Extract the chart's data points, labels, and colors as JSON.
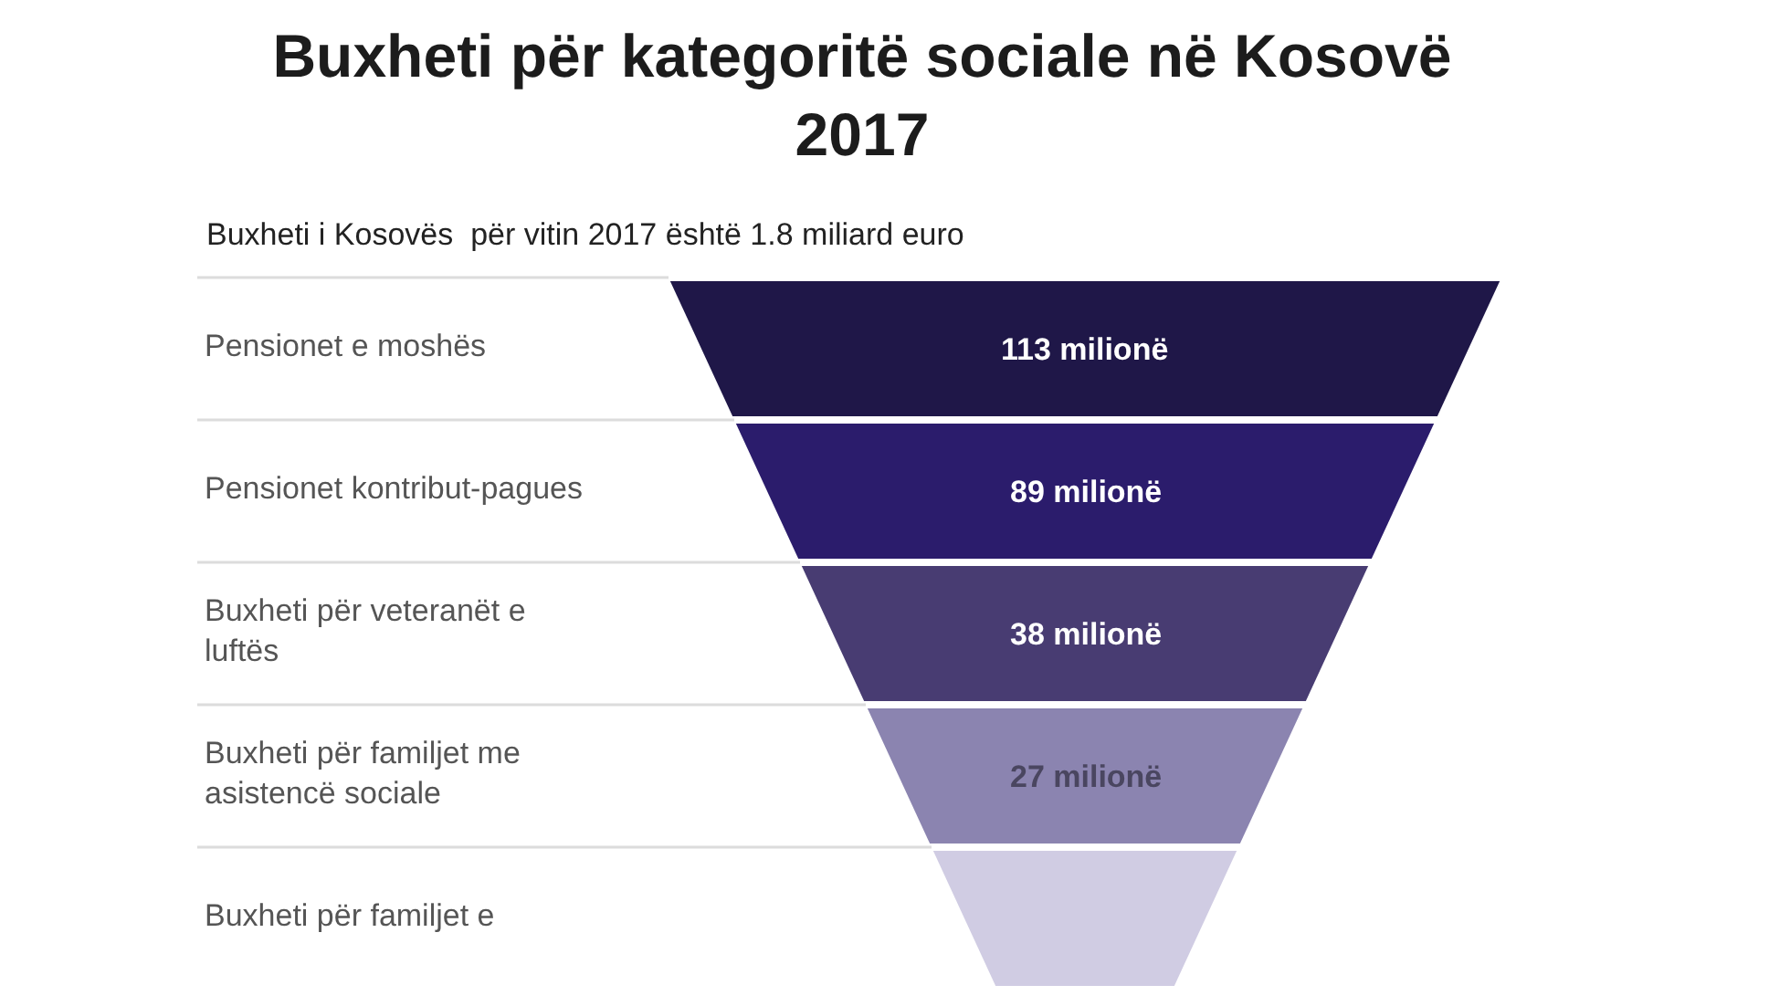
{
  "chart_data": {
    "type": "other",
    "title": "Buxheti për kategoritë sociale në Kosovë 2017",
    "subtitle": "Buxheti i Kosovës  për vitin 2017 është 1.8 miliard euro",
    "categories": [
      "Pensionet e moshës",
      "Pensionet kontribut-pagues",
      "Buxheti për veteranët e luftës",
      "Buxheti për familjet me asistencë sociale",
      "Buxheti për familjet e"
    ],
    "values": [
      113,
      89,
      38,
      27,
      null
    ],
    "value_labels": [
      "113 milionë",
      "89 milionë",
      "38 milionë",
      "27 milionë",
      null
    ],
    "colors": [
      "#1f1748",
      "#2b1c6c",
      "#483c72",
      "#8b84b0",
      "#d0cce3"
    ]
  }
}
